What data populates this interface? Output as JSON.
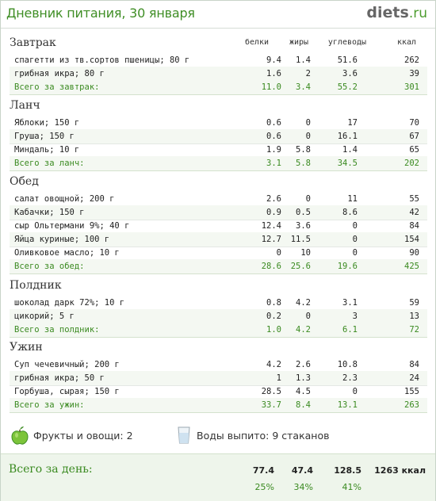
{
  "header": {
    "title": "Дневник питания, 30 января",
    "logo_main": "diets",
    "logo_tld": ".ru"
  },
  "columns": [
    "белки",
    "жиры",
    "углеводы",
    "ккал"
  ],
  "meals": [
    {
      "title": "Завтрак",
      "items": [
        {
          "name": "спагетти из тв.сортов пшеницы; 80 г",
          "protein": "9.4",
          "fat": "1.4",
          "carbs": "51.6",
          "kcal": "262"
        },
        {
          "name": "грибная икра; 80 г",
          "protein": "1.6",
          "fat": "2",
          "carbs": "3.6",
          "kcal": "39"
        }
      ],
      "total": {
        "name": "Всего за завтрак:",
        "protein": "11.0",
        "fat": "3.4",
        "carbs": "55.2",
        "kcal": "301"
      }
    },
    {
      "title": "Ланч",
      "items": [
        {
          "name": "Яблоки; 150 г",
          "protein": "0.6",
          "fat": "0",
          "carbs": "17",
          "kcal": "70"
        },
        {
          "name": "Груша; 150 г",
          "protein": "0.6",
          "fat": "0",
          "carbs": "16.1",
          "kcal": "67"
        },
        {
          "name": "Миндаль; 10 г",
          "protein": "1.9",
          "fat": "5.8",
          "carbs": "1.4",
          "kcal": "65"
        }
      ],
      "total": {
        "name": "Всего за ланч:",
        "protein": "3.1",
        "fat": "5.8",
        "carbs": "34.5",
        "kcal": "202"
      }
    },
    {
      "title": "Обед",
      "items": [
        {
          "name": "салат овощной; 200 г",
          "protein": "2.6",
          "fat": "0",
          "carbs": "11",
          "kcal": "55"
        },
        {
          "name": "Кабачки; 150 г",
          "protein": "0.9",
          "fat": "0.5",
          "carbs": "8.6",
          "kcal": "42"
        },
        {
          "name": "сыр Ольтермани 9%; 40 г",
          "protein": "12.4",
          "fat": "3.6",
          "carbs": "0",
          "kcal": "84"
        },
        {
          "name": "Яйца куриные; 100 г",
          "protein": "12.7",
          "fat": "11.5",
          "carbs": "0",
          "kcal": "154"
        },
        {
          "name": "Оливковое масло; 10 г",
          "protein": "0",
          "fat": "10",
          "carbs": "0",
          "kcal": "90"
        }
      ],
      "total": {
        "name": "Всего за обед:",
        "protein": "28.6",
        "fat": "25.6",
        "carbs": "19.6",
        "kcal": "425"
      }
    },
    {
      "title": "Полдник",
      "items": [
        {
          "name": "шоколад дарк 72%; 10 г",
          "protein": "0.8",
          "fat": "4.2",
          "carbs": "3.1",
          "kcal": "59"
        },
        {
          "name": "цикорий; 5 г",
          "protein": "0.2",
          "fat": "0",
          "carbs": "3",
          "kcal": "13"
        }
      ],
      "total": {
        "name": "Всего за полдник:",
        "protein": "1.0",
        "fat": "4.2",
        "carbs": "6.1",
        "kcal": "72"
      }
    },
    {
      "title": "Ужин",
      "items": [
        {
          "name": "Суп чечевичный; 200 г",
          "protein": "4.2",
          "fat": "2.6",
          "carbs": "10.8",
          "kcal": "84"
        },
        {
          "name": "грибная икра; 50 г",
          "protein": "1",
          "fat": "1.3",
          "carbs": "2.3",
          "kcal": "24"
        },
        {
          "name": "Горбуша, сырая; 150 г",
          "protein": "28.5",
          "fat": "4.5",
          "carbs": "0",
          "kcal": "155"
        }
      ],
      "total": {
        "name": "Всего за ужин:",
        "protein": "33.7",
        "fat": "8.4",
        "carbs": "13.1",
        "kcal": "263"
      }
    }
  ],
  "extras": {
    "fruits": "Фрукты и овощи: 2",
    "water": "Воды выпито: 9 стаканов"
  },
  "day_total": {
    "label": "Всего за день:",
    "protein": "77.4",
    "fat": "47.4",
    "carbs": "128.5",
    "kcal": "1263 ккал",
    "protein_pct": "25%",
    "fat_pct": "34%",
    "carbs_pct": "41%"
  },
  "colors": {
    "accent_green": "#3a8a20",
    "total_row_bg": "#f4f8f2"
  },
  "icons": [
    "apple-icon",
    "water-glass-icon"
  ]
}
